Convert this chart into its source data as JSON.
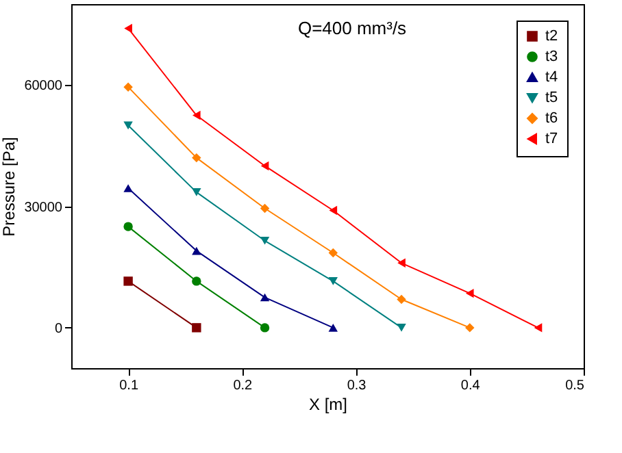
{
  "chart_data": {
    "type": "line",
    "annotations": [
      "Q=400 mm³/s"
    ],
    "xlabel": "X [m]",
    "ylabel": "Pressure [Pa]",
    "xlim": [
      0.05,
      0.5
    ],
    "xticks": [
      0.1,
      0.2,
      0.3,
      0.4,
      0.5
    ],
    "ylim": [
      -10000,
      80000
    ],
    "yticks": [
      0,
      30000,
      60000
    ],
    "grid": false,
    "legend": "top right",
    "line_style": "solid",
    "series": [
      {
        "name": "t2",
        "color": "#800000",
        "marker": "square",
        "x": [
          0.1,
          0.16
        ],
        "values": [
          11500,
          0
        ]
      },
      {
        "name": "t3",
        "color": "#008000",
        "marker": "circle",
        "x": [
          0.1,
          0.16,
          0.22
        ],
        "values": [
          25000,
          11500,
          0
        ]
      },
      {
        "name": "t4",
        "color": "#000080",
        "marker": "triangle",
        "x": [
          0.1,
          0.16,
          0.22,
          0.28
        ],
        "values": [
          34500,
          19000,
          7500,
          0
        ]
      },
      {
        "name": "t5",
        "color": "#008080",
        "marker": "triangle-down",
        "x": [
          0.1,
          0.16,
          0.22,
          0.28,
          0.34
        ],
        "values": [
          50000,
          33500,
          21500,
          11500,
          0
        ]
      },
      {
        "name": "t6",
        "color": "#ff8000",
        "marker": "diamond",
        "x": [
          0.1,
          0.16,
          0.22,
          0.28,
          0.34,
          0.4
        ],
        "values": [
          59500,
          42000,
          29500,
          18500,
          7000,
          0
        ]
      },
      {
        "name": "t7",
        "color": "#ff0000",
        "marker": "triangle-left",
        "x": [
          0.1,
          0.16,
          0.22,
          0.28,
          0.34,
          0.4,
          0.46
        ],
        "values": [
          74000,
          52500,
          40000,
          29000,
          16000,
          8500,
          0
        ]
      }
    ]
  }
}
